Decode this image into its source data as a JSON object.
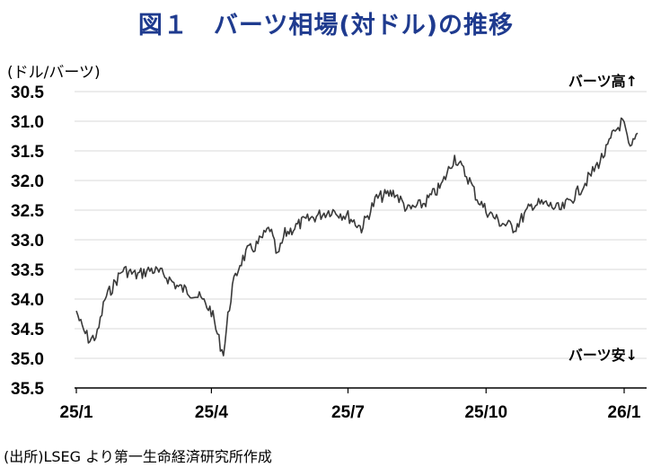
{
  "title": "図１　バーツ相場(対ドル)の推移",
  "unit_label": "(ドル/バーツ)",
  "source": "(出所)LSEG より第一生命経済研究所作成",
  "colors": {
    "title": "#1f3b8f",
    "series": "#3a3a3a",
    "grid": "#d9d9d9",
    "axis": "#000000"
  },
  "chart_data": {
    "type": "line",
    "title": "",
    "xlabel": "",
    "ylabel": "(ドル/バーツ)",
    "y_reversed": true,
    "ylim": [
      30.5,
      35.5
    ],
    "yticks": [
      "30.5",
      "31.0",
      "31.5",
      "32.0",
      "32.5",
      "33.0",
      "33.5",
      "34.0",
      "34.5",
      "35.0",
      "35.5"
    ],
    "xticks": [
      "25/1",
      "25/4",
      "25/7",
      "25/10",
      "26/1"
    ],
    "grid": "horizontal",
    "annotations": [
      {
        "text": "バーツ高↑",
        "position": "top-right"
      },
      {
        "text": "バーツ安↓",
        "position": "bottom-right"
      }
    ],
    "series": [
      {
        "x": [
          "2025-01-01",
          "2025-01-05",
          "2025-01-10",
          "2025-01-15",
          "2025-01-20",
          "2025-01-25",
          "2025-02-01",
          "2025-02-10",
          "2025-02-20",
          "2025-03-01",
          "2025-03-10",
          "2025-03-20",
          "2025-03-25",
          "2025-04-01",
          "2025-04-05",
          "2025-04-09",
          "2025-04-12",
          "2025-04-15",
          "2025-04-20",
          "2025-04-25",
          "2025-05-01",
          "2025-05-10",
          "2025-05-15",
          "2025-05-20",
          "2025-06-01",
          "2025-06-10",
          "2025-06-20",
          "2025-07-01",
          "2025-07-10",
          "2025-07-20",
          "2025-08-01",
          "2025-08-10",
          "2025-08-20",
          "2025-09-01",
          "2025-09-10",
          "2025-09-15",
          "2025-09-20",
          "2025-09-25",
          "2025-10-01",
          "2025-10-10",
          "2025-10-20",
          "2025-11-01",
          "2025-11-10",
          "2025-11-20",
          "2025-12-01",
          "2025-12-10",
          "2025-12-20",
          "2025-12-25",
          "2025-12-31",
          "2026-01-05",
          "2026-01-10"
        ],
        "y": [
          34.2,
          34.5,
          34.7,
          34.6,
          34.0,
          33.8,
          33.5,
          33.6,
          33.5,
          33.6,
          33.8,
          33.9,
          34.0,
          34.2,
          34.6,
          34.95,
          34.3,
          33.8,
          33.4,
          33.2,
          33.1,
          32.8,
          33.3,
          32.9,
          32.7,
          32.6,
          32.5,
          32.6,
          32.8,
          32.3,
          32.2,
          32.5,
          32.4,
          32.1,
          31.6,
          31.8,
          32.0,
          32.3,
          32.5,
          32.7,
          32.8,
          32.4,
          32.4,
          32.5,
          32.2,
          31.9,
          31.5,
          31.2,
          31.0,
          31.5,
          31.2
        ]
      }
    ]
  }
}
